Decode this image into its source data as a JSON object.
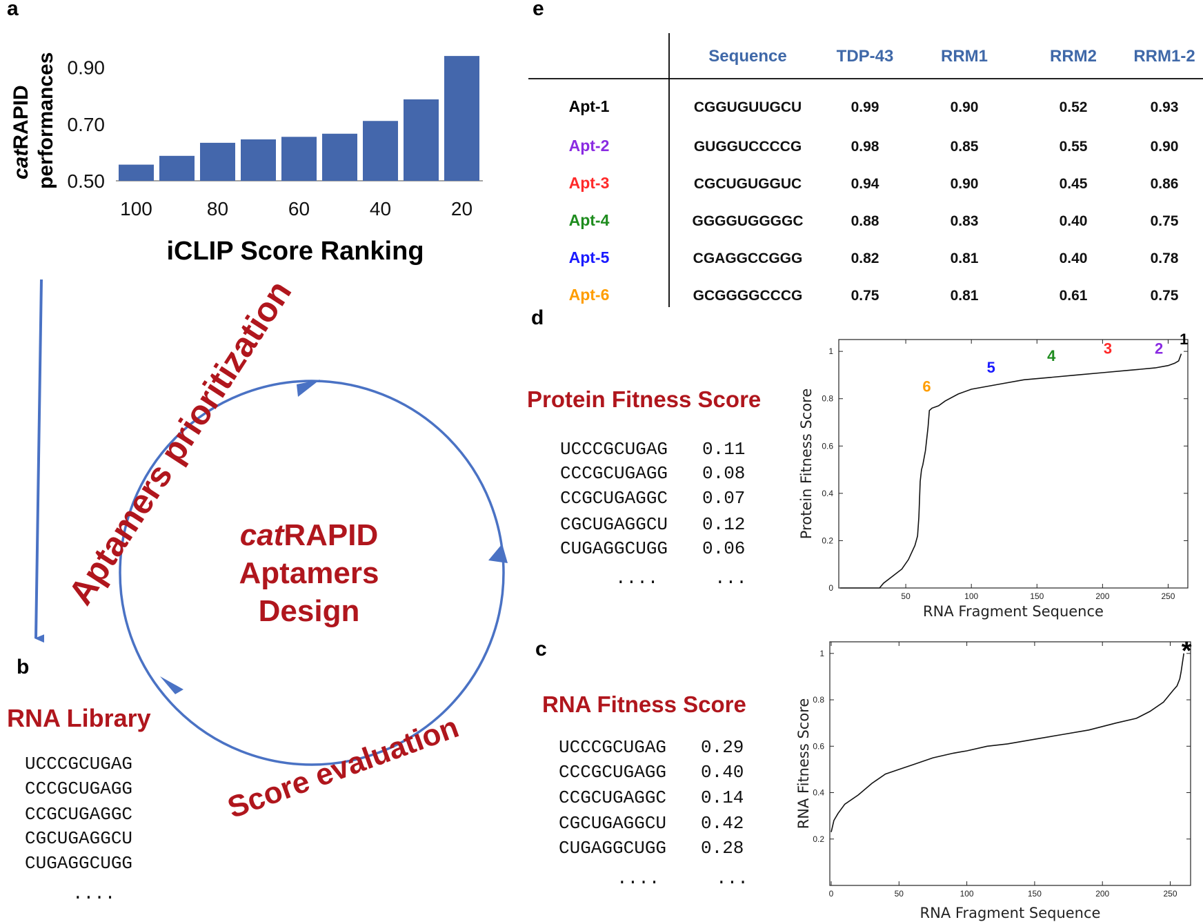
{
  "panels": {
    "a": {
      "label": "a",
      "ylabel_italic": "cat",
      "ylabel_rest": "RAPID",
      "ylabel_line2": "performances",
      "xlabel": "iCLIP Score Ranking"
    },
    "b": {
      "label": "b",
      "title": "RNA Library",
      "sequences": [
        "UCCCGCUGAG",
        "CCCGCUGAGG",
        "CCGCUGAGGC",
        "CGCUGAGGCU",
        "CUGAGGCUGG"
      ],
      "ellipsis": "...."
    },
    "cycle": {
      "center_italic": "cat",
      "center_rest": "RAPID",
      "center_line2": "Aptamers",
      "center_line3": "Design",
      "arc_top": "Aptamers prioritization",
      "arc_bottom": "Score evaluation"
    },
    "c": {
      "label": "c",
      "title": "RNA Fitness Score",
      "rows": [
        {
          "seq": "UCCCGCUGAG",
          "score": "0.29"
        },
        {
          "seq": "CCCGCUGAGG",
          "score": "0.40"
        },
        {
          "seq": "CCGCUGAGGC",
          "score": "0.14"
        },
        {
          "seq": "CGCUGAGGCU",
          "score": "0.42"
        },
        {
          "seq": "CUGAGGCUGG",
          "score": "0.28"
        }
      ],
      "ellipsis_seq": "....",
      "ellipsis_score": "..."
    },
    "d": {
      "label": "d",
      "title": "Protein Fitness Score",
      "rows": [
        {
          "seq": "UCCCGCUGAG",
          "score": "0.11"
        },
        {
          "seq": "CCCGCUGAGG",
          "score": "0.08"
        },
        {
          "seq": "CCGCUGAGGC",
          "score": "0.07"
        },
        {
          "seq": "CGCUGAGGCU",
          "score": "0.12"
        },
        {
          "seq": "CUGAGGCUGG",
          "score": "0.06"
        }
      ],
      "ellipsis_seq": "....",
      "ellipsis_score": "..."
    },
    "e": {
      "label": "e",
      "headers": [
        "Sequence",
        "TDP-43",
        "RRM1",
        "RRM2",
        "RRM1-2"
      ],
      "rows": [
        {
          "name": "Apt-1",
          "color": "#000000",
          "seq": "CGGUGUUGCU",
          "tdp": "0.99",
          "rrm1": "0.90",
          "rrm2": "0.52",
          "rrm12": "0.93"
        },
        {
          "name": "Apt-2",
          "color": "#8a2be2",
          "seq": "GUGGUCCCCG",
          "tdp": "0.98",
          "rrm1": "0.85",
          "rrm2": "0.55",
          "rrm12": "0.90"
        },
        {
          "name": "Apt-3",
          "color": "#ff2a2a",
          "seq": "CGCUGUGGUC",
          "tdp": "0.94",
          "rrm1": "0.90",
          "rrm2": "0.45",
          "rrm12": "0.86"
        },
        {
          "name": "Apt-4",
          "color": "#1e8c1e",
          "seq": "GGGGUGGGGC",
          "tdp": "0.88",
          "rrm1": "0.83",
          "rrm2": "0.40",
          "rrm12": "0.75"
        },
        {
          "name": "Apt-5",
          "color": "#1a1aff",
          "seq": "CGAGGCCGGG",
          "tdp": "0.82",
          "rrm1": "0.81",
          "rrm2": "0.40",
          "rrm12": "0.78"
        },
        {
          "name": "Apt-6",
          "color": "#ff9d00",
          "seq": "GCGGGGCCCG",
          "tdp": "0.75",
          "rrm1": "0.81",
          "rrm2": "0.61",
          "rrm12": "0.75"
        }
      ]
    }
  },
  "chart_data": [
    {
      "id": "panel-a-bars",
      "type": "bar",
      "categories": [
        "100",
        "90",
        "80",
        "70",
        "60",
        "50",
        "40",
        "30",
        "20"
      ],
      "values": [
        0.557,
        0.588,
        0.634,
        0.646,
        0.655,
        0.666,
        0.711,
        0.787,
        0.94
      ],
      "x_tick_labels": [
        "100",
        "80",
        "60",
        "40",
        "20"
      ],
      "y_tick_labels": [
        "0.50",
        "0.70",
        "0.90"
      ],
      "ylim": [
        0.5,
        0.95
      ],
      "xlabel": "iCLIP Score Ranking",
      "ylabel": "catRAPID performances",
      "bar_color": "#4467ac"
    },
    {
      "id": "panel-d-curve",
      "type": "line",
      "xlabel": "RNA Fragment Sequence",
      "ylabel": "Protein Fitness Score",
      "xlim": [
        0,
        265
      ],
      "ylim": [
        0,
        1.05
      ],
      "x_ticks": [
        50,
        100,
        150,
        200,
        250
      ],
      "y_ticks": [
        0,
        0.2,
        0.4,
        0.6,
        0.8,
        1
      ],
      "y_tick_labels": [
        "0",
        "0.2",
        "0.4",
        "0.6",
        "0.8",
        "1"
      ],
      "x": [
        0,
        30,
        33,
        40,
        47,
        52,
        57,
        59,
        60,
        61,
        62,
        63,
        64,
        65,
        66,
        67,
        68,
        70,
        75,
        80,
        90,
        100,
        120,
        140,
        160,
        180,
        200,
        220,
        240,
        250,
        255,
        258,
        260
      ],
      "y": [
        0,
        0,
        0.02,
        0.05,
        0.08,
        0.12,
        0.18,
        0.22,
        0.3,
        0.45,
        0.5,
        0.52,
        0.55,
        0.58,
        0.63,
        0.68,
        0.75,
        0.76,
        0.77,
        0.79,
        0.82,
        0.84,
        0.86,
        0.88,
        0.89,
        0.9,
        0.91,
        0.92,
        0.93,
        0.94,
        0.95,
        0.96,
        0.99
      ],
      "annotations": [
        {
          "text": "1",
          "x": 262,
          "y": 1.03,
          "color": "#000000"
        },
        {
          "text": "2",
          "x": 243,
          "y": 0.99,
          "color": "#8a2be2"
        },
        {
          "text": "3",
          "x": 204,
          "y": 0.99,
          "color": "#ff2a2a"
        },
        {
          "text": "4",
          "x": 161,
          "y": 0.96,
          "color": "#1e8c1e"
        },
        {
          "text": "5",
          "x": 115,
          "y": 0.91,
          "color": "#1a1aff"
        },
        {
          "text": "6",
          "x": 66,
          "y": 0.83,
          "color": "#ff9d00"
        }
      ]
    },
    {
      "id": "panel-c-curve",
      "type": "line",
      "xlabel": "RNA Fragment Sequence",
      "ylabel": "RNA Fitness Score",
      "xlim": [
        0,
        265
      ],
      "ylim": [
        0,
        1.05
      ],
      "x_ticks": [
        0,
        50,
        100,
        150,
        200,
        250
      ],
      "y_ticks": [
        0.2,
        0.4,
        0.6,
        0.8,
        1
      ],
      "y_tick_labels": [
        "0.2",
        "0.4",
        "0.6",
        "0.8",
        "1"
      ],
      "x": [
        0,
        2,
        5,
        10,
        20,
        30,
        40,
        50,
        60,
        75,
        90,
        100,
        115,
        130,
        150,
        170,
        190,
        210,
        225,
        235,
        245,
        252,
        255,
        257,
        258,
        260
      ],
      "y": [
        0.23,
        0.28,
        0.31,
        0.35,
        0.39,
        0.44,
        0.48,
        0.5,
        0.52,
        0.55,
        0.57,
        0.58,
        0.6,
        0.61,
        0.63,
        0.65,
        0.67,
        0.7,
        0.72,
        0.75,
        0.79,
        0.84,
        0.86,
        0.89,
        0.92,
        1.0
      ],
      "annotations": [
        {
          "text": "*",
          "x": 262,
          "y": 1.04,
          "color": "#000000"
        }
      ]
    }
  ]
}
